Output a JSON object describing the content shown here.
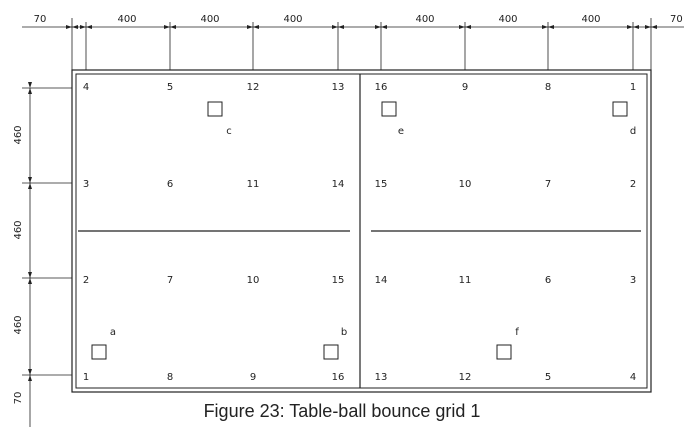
{
  "dimensions": {
    "top": [
      "70",
      "400",
      "400",
      "400",
      "400",
      "400",
      "400",
      "70"
    ],
    "left": [
      "460",
      "460",
      "460",
      "70"
    ]
  },
  "grid": {
    "left": [
      [
        "4",
        "5",
        "12",
        "13"
      ],
      [
        "3",
        "6",
        "11",
        "14"
      ],
      [
        "2",
        "7",
        "10",
        "15"
      ],
      [
        "1",
        "8",
        "9",
        "16"
      ]
    ],
    "right": [
      [
        "16",
        "9",
        "8",
        "1"
      ],
      [
        "15",
        "10",
        "7",
        "2"
      ],
      [
        "14",
        "11",
        "6",
        "3"
      ],
      [
        "13",
        "12",
        "5",
        "4"
      ]
    ]
  },
  "markers": [
    "c",
    "e",
    "d",
    "a",
    "b",
    "f"
  ],
  "caption": "Figure 23: Table-ball bounce grid 1"
}
